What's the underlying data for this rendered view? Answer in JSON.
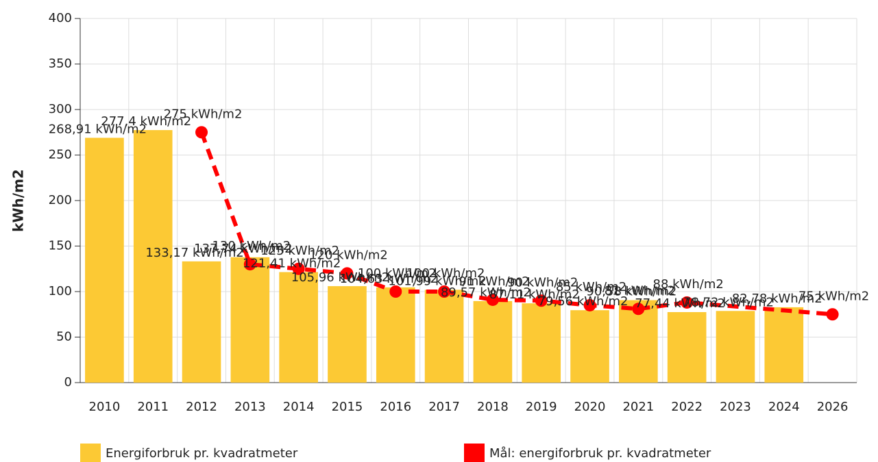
{
  "chart_data": {
    "type": "bar",
    "y_label": "kWh/m2",
    "categories": [
      "2010",
      "2011",
      "2012",
      "2013",
      "2014",
      "2015",
      "2016",
      "2017",
      "2018",
      "2019",
      "2020",
      "2021",
      "2022",
      "2023",
      "2024",
      "2026"
    ],
    "series": [
      {
        "name": "Energiforbruk pr. kvadratmeter",
        "color": "#fcc934",
        "type": "bar",
        "values": [
          268.91,
          277.4,
          133.17,
          137.74,
          121.41,
          105.96,
          104.63,
          101.99,
          89.57,
          87.11,
          79.56,
          90.58,
          77.44,
          78.72,
          82.78,
          null
        ],
        "value_labels": [
          "268,91 kWh/m2",
          "277,4 kWh/m2",
          "133,17 kWh/m2",
          "137,74 kWh/m2",
          "121,41 kWh/m2",
          "105,96 kWh/m2",
          "104,63 kWh/m2",
          "101,99 kWh/m2",
          "89,57 kWh/m2",
          "87,11 kWh/m2",
          "79,56 kWh/m2",
          "90,58 kWh/m2",
          "77,44 kWh/m2",
          "78,72 kWh/m2",
          "82,78 kWh/m2",
          null
        ]
      },
      {
        "name": "Mål: energiforbruk pr. kvadratmeter",
        "color": "#ff0000",
        "type": "line",
        "values": [
          null,
          null,
          275,
          130,
          125,
          120,
          100,
          100,
          91,
          90,
          85,
          81,
          88,
          null,
          null,
          75
        ],
        "value_labels": [
          null,
          null,
          "275 kWh/m2",
          "130 kWh/m2",
          "125 kWh/m2",
          "120 kWh/m2",
          "100 kWh/m2",
          "100 kWh/m2",
          "91 kWh/m2",
          "90 kWh/m2",
          "85 kWh/m2",
          "81 kWh/m2",
          "88 kWh/m2",
          null,
          null,
          "75 kWh/m2"
        ]
      }
    ],
    "ylim": [
      0,
      400
    ],
    "yticks": [
      0,
      50,
      100,
      150,
      200,
      250,
      300,
      350,
      400
    ],
    "grid": true
  }
}
